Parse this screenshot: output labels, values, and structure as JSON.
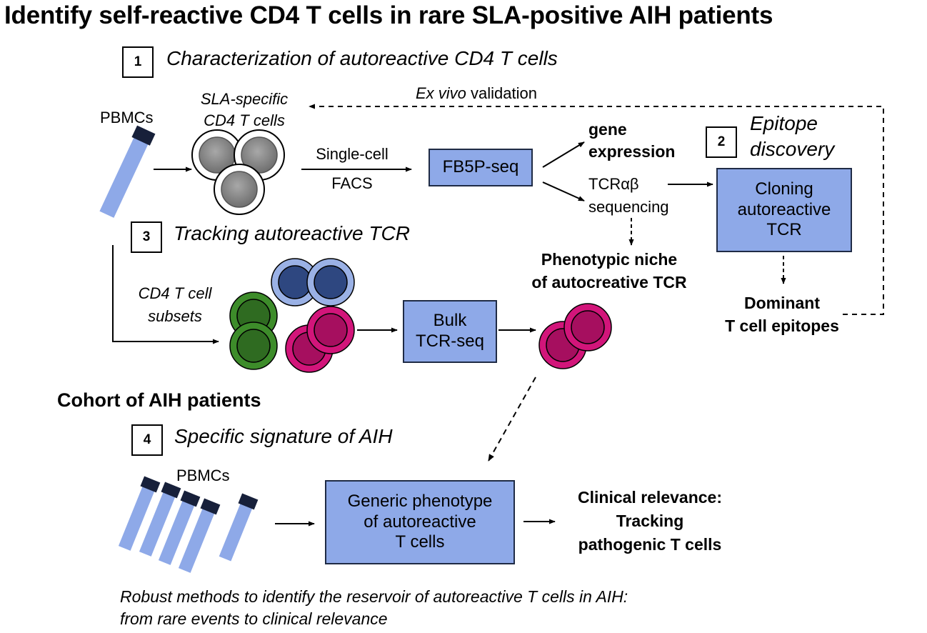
{
  "title": "Identify self-reactive CD4 T cells in rare SLA-positive AIH patients",
  "steps": {
    "s1": {
      "num": "1",
      "label": "Characterization of autoreactive CD4 T cells"
    },
    "s2": {
      "num": "2",
      "label_line1": "Epitope",
      "label_line2": "discovery"
    },
    "s3": {
      "num": "3",
      "label": "Tracking autoreactive TCR"
    },
    "s4": {
      "num": "4",
      "label": "Specific signature of AIH"
    }
  },
  "labels": {
    "pbmcs_top": "PBMCs",
    "sla_line1": "SLA-specific",
    "sla_line2": "CD4 T cells",
    "single_cell": "Single-cell",
    "facs": "FACS",
    "ex_vivo_italic": "Ex vivo",
    "validation": "validation",
    "gene_expression_1": "gene",
    "gene_expression_2": "expression",
    "tcr_seq_1": "TCRαβ",
    "tcr_seq_2": "sequencing",
    "niche_1": "Phenotypic niche",
    "niche_2": "of autocreative TCR",
    "dominant_1": "Dominant",
    "dominant_2": "T cell epitopes",
    "subsets_1": "CD4 T cell",
    "subsets_2": "subsets",
    "cohort": "Cohort of AIH patients",
    "pbmcs_bottom": "PBMCs",
    "clinical_1": "Clinical relevance:",
    "clinical_2": "Tracking",
    "clinical_3": "pathogenic T cells"
  },
  "boxes": {
    "fb5p": "FB5P-seq",
    "cloning_1": "Cloning",
    "cloning_2": "autoreactive",
    "cloning_3": "TCR",
    "bulk_1": "Bulk",
    "bulk_2": "TCR-seq",
    "generic_1": "Generic phenotype",
    "generic_2": "of autoreactive",
    "generic_3": "T cells"
  },
  "footer": {
    "line1": "Robust methods to identify the reservoir of autoreactive T cells in AIH:",
    "line2": "from rare events to clinical relevance"
  },
  "colors": {
    "box_fill": "#8ea9e8",
    "tube_body": "#8ea9e8",
    "tube_cap": "#17203a",
    "cell_gray": "#8c8c8c",
    "cell_lightblue": "#9ab1e5",
    "cell_darkblue": "#2e4780",
    "cell_green": "#3d8c2a",
    "cell_magenta": "#d2157a"
  },
  "icons": [
    "test-tube-icon",
    "cell-icon",
    "arrow-icon",
    "dashed-arrow-icon"
  ]
}
